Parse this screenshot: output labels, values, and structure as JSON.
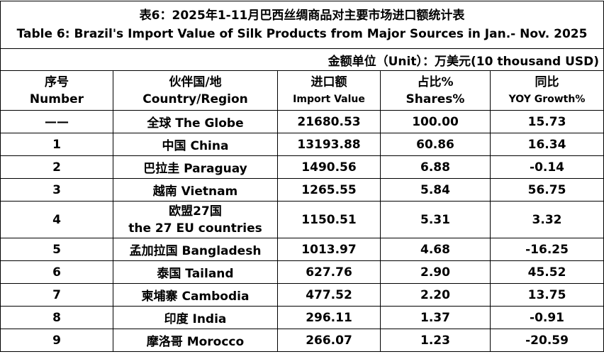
{
  "title": {
    "zh": "表6：2025年1-11月巴西丝绸商品对主要市场进口额统计表",
    "en": "Table 6: Brazil's Import Value of Silk Products from Major Sources in Jan.- Nov. 2025"
  },
  "unit": "金额单位（Unit）：万美元(10 thousand USD)",
  "table": {
    "header": [
      [
        "序号",
        "Number"
      ],
      [
        "伙伴国/地",
        "Country/Region"
      ],
      [
        "进口额",
        "Import Value"
      ],
      [
        "占比%",
        "Shares%"
      ],
      [
        "同比",
        "YOY Growth%"
      ]
    ],
    "rows": [
      [
        "——",
        "全球  The Globe",
        "21680.53",
        "100.00",
        "15.73"
      ],
      [
        "1",
        "中国 China",
        "13193.88",
        "60.86",
        "16.34"
      ],
      [
        "2",
        "巴拉圭 Paraguay",
        "1490.56",
        "6.88",
        "-0.14"
      ],
      [
        "3",
        "越南 Vietnam",
        "1265.55",
        "5.84",
        "56.75"
      ],
      [
        "4",
        [
          "欧盟27国",
          "the 27 EU countries"
        ],
        "1150.51",
        "5.31",
        "3.32"
      ],
      [
        "5",
        "孟加拉国 Bangladesh",
        "1013.97",
        "4.68",
        "-16.25"
      ],
      [
        "6",
        "泰国 Tailand",
        "627.76",
        "2.90",
        "45.52"
      ],
      [
        "7",
        "柬埔寨 Cambodia",
        "477.52",
        "2.20",
        "13.75"
      ],
      [
        "8",
        "印度 India",
        "296.11",
        "1.37",
        "-0.91"
      ],
      [
        "9",
        "摩洛哥 Morocco",
        "266.07",
        "1.23",
        "-20.59"
      ]
    ]
  }
}
